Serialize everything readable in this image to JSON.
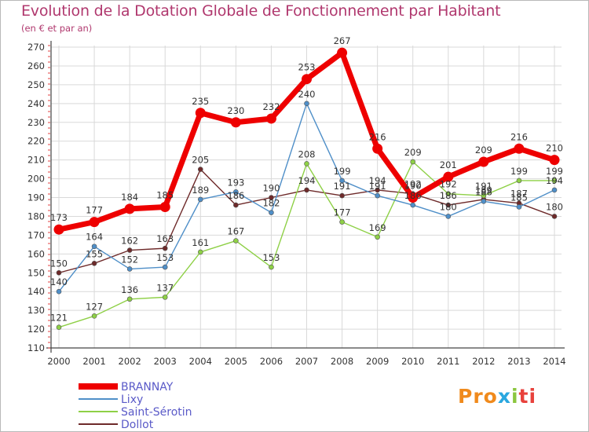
{
  "chart_data": {
    "type": "line",
    "title": "Evolution de la Dotation Globale de Fonctionnement par Habitant",
    "subtitle": "(en € et par an)",
    "xlabel": "",
    "ylabel": "",
    "ylim": [
      110,
      270
    ],
    "yticks": [
      110,
      120,
      130,
      140,
      150,
      160,
      170,
      180,
      190,
      200,
      210,
      220,
      230,
      240,
      250,
      260,
      270
    ],
    "x": [
      "2000",
      "2001",
      "2002",
      "2003",
      "2004",
      "2005",
      "2006",
      "2007",
      "2008",
      "2009",
      "2010",
      "2011",
      "2012",
      "2013",
      "2014"
    ],
    "legend_position": "bottom-left",
    "grid": true,
    "series": [
      {
        "name": "BRANNAY",
        "color": "#ee0000",
        "values": [
          173,
          177,
          184,
          185,
          235,
          230,
          232,
          253,
          267,
          216,
          190,
          201,
          209,
          216,
          210
        ]
      },
      {
        "name": "Lixy",
        "color": "#4f8fc8",
        "values": [
          140,
          164,
          152,
          153,
          189,
          193,
          182,
          240,
          199,
          191,
          186,
          180,
          188,
          185,
          194
        ]
      },
      {
        "name": "Saint-Sérotin",
        "color": "#8ed046",
        "values": [
          121,
          127,
          136,
          137,
          161,
          167,
          153,
          208,
          177,
          169,
          209,
          192,
          191,
          199,
          199
        ]
      },
      {
        "name": "Dollot",
        "color": "#6e2a2a",
        "values": [
          150,
          155,
          162,
          163,
          205,
          186,
          190,
          194,
          191,
          194,
          192,
          186,
          189,
          187,
          180
        ]
      }
    ]
  },
  "logo": {
    "part1": "Pro",
    "part2": "x",
    "part3": "i",
    "part4": "ti"
  }
}
